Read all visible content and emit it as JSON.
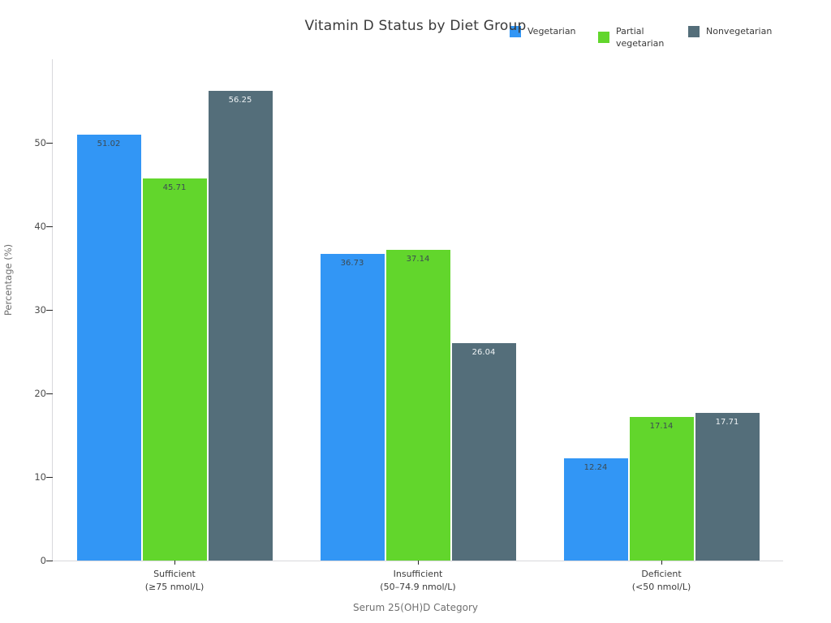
{
  "chart_data": {
    "type": "bar",
    "title": "Vitamin D Status by Diet Group",
    "xlabel": "Serum 25(OH)D Category",
    "ylabel": "Percentage (%)",
    "categories": [
      "Sufficient\n(≥75 nmol/L)",
      "Insufficient\n(50–74.9 nmol/L)",
      "Deficient\n(<50 nmol/L)"
    ],
    "series": [
      {
        "name": "Vegetarian",
        "color": "#3296f5",
        "value_label_color": "#3c4a52",
        "values": [
          51.02,
          36.73,
          12.24
        ]
      },
      {
        "name": "Partial vegetarian",
        "color": "#62d62c",
        "value_label_color": "#3c4a52",
        "values": [
          45.71,
          37.14,
          17.14
        ]
      },
      {
        "name": "Nonvegetarian",
        "color": "#546e7a",
        "value_label_color": "#eef2f4",
        "values": [
          56.25,
          26.04,
          17.71
        ]
      }
    ],
    "yticks": [
      0,
      10,
      20,
      30,
      40,
      50
    ],
    "ylim": [
      0,
      60
    ],
    "grid": false,
    "legend_position": "top-right",
    "value_label_format": "0.00"
  }
}
